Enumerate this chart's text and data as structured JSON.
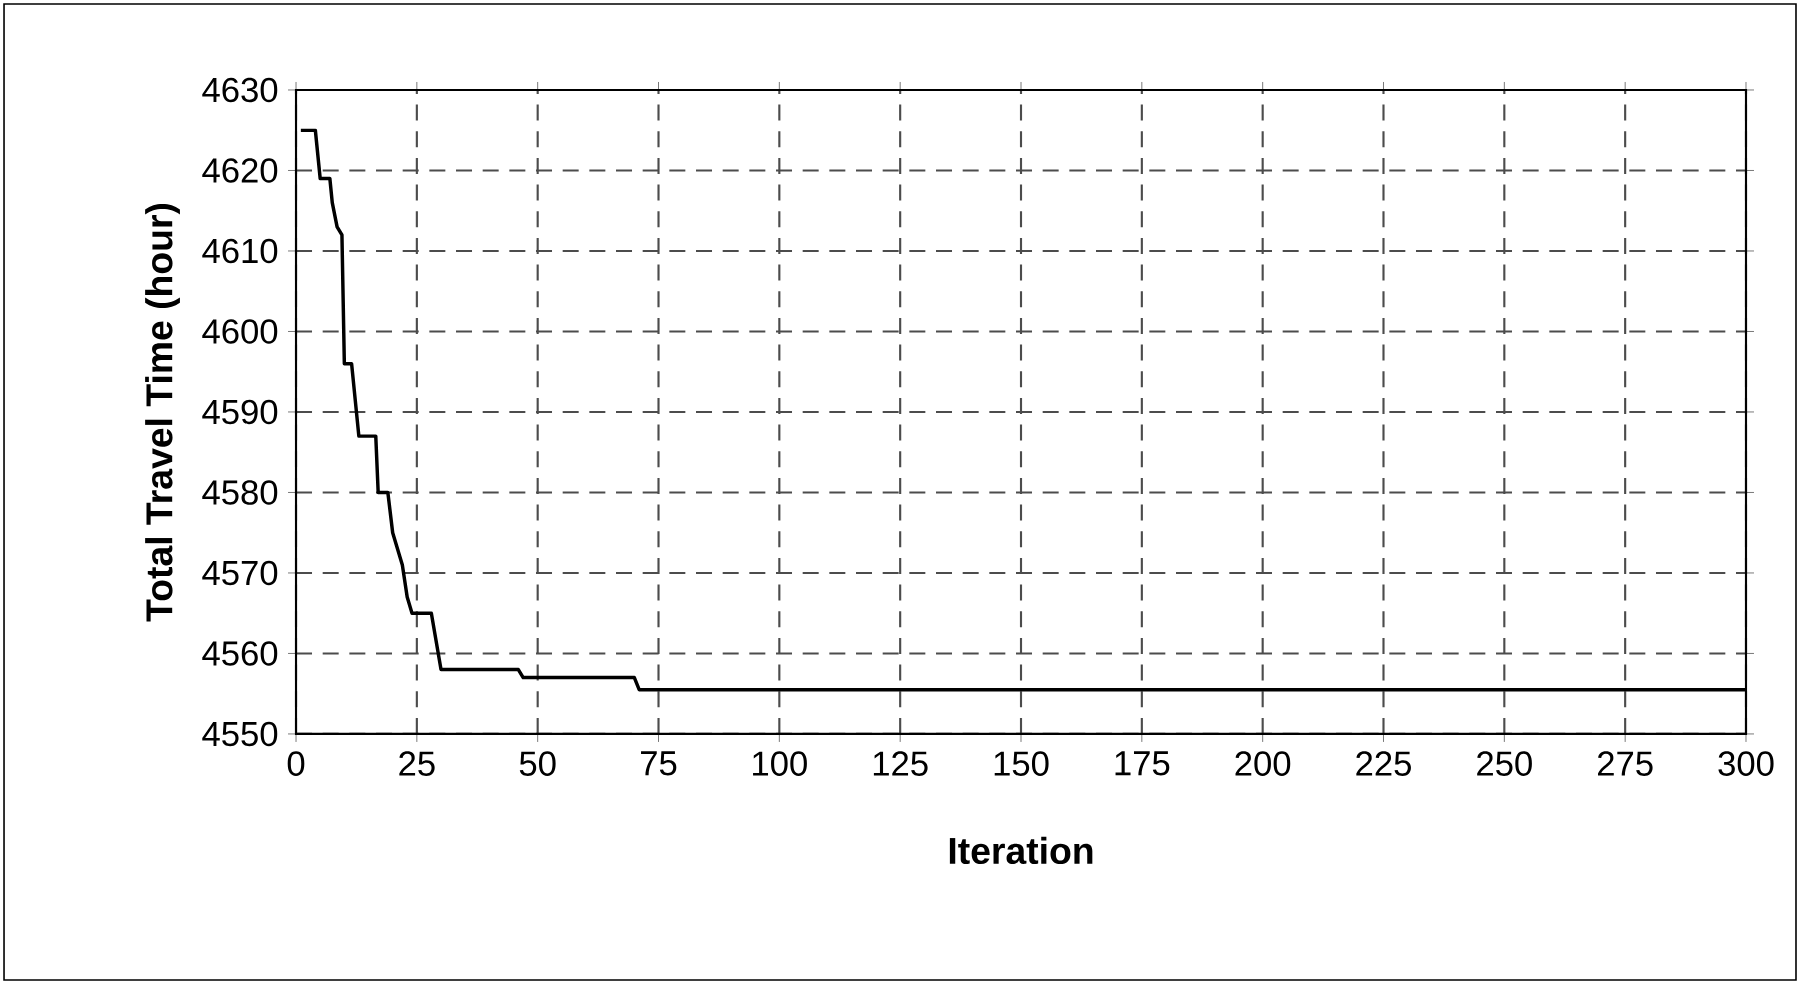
{
  "chart_data": {
    "type": "line",
    "xlabel": "Iteration",
    "ylabel": "Total Travel Time (hour)",
    "x": [
      1,
      4,
      5,
      7,
      7.5,
      8.5,
      9.5,
      10,
      11.5,
      13,
      16.5,
      17,
      19,
      20,
      22,
      23,
      24,
      28,
      30,
      46,
      47,
      70,
      71,
      300
    ],
    "values": [
      4625,
      4625,
      4619,
      4619,
      4616,
      4613,
      4612,
      4596,
      4596,
      4587,
      4587,
      4580,
      4580,
      4575,
      4571,
      4567,
      4565,
      4565,
      4558,
      4558,
      4557,
      4557,
      4555.5,
      4555.5
    ],
    "color": "#000000",
    "xlim": [
      0,
      300
    ],
    "xticks": [
      0,
      25,
      50,
      75,
      100,
      125,
      150,
      175,
      200,
      225,
      250,
      275,
      300
    ],
    "ylim": [
      4550,
      4630
    ],
    "yticks": [
      4550,
      4560,
      4570,
      4580,
      4590,
      4600,
      4610,
      4620,
      4630
    ],
    "grid": true,
    "marker": "none",
    "line_style": "solid"
  }
}
